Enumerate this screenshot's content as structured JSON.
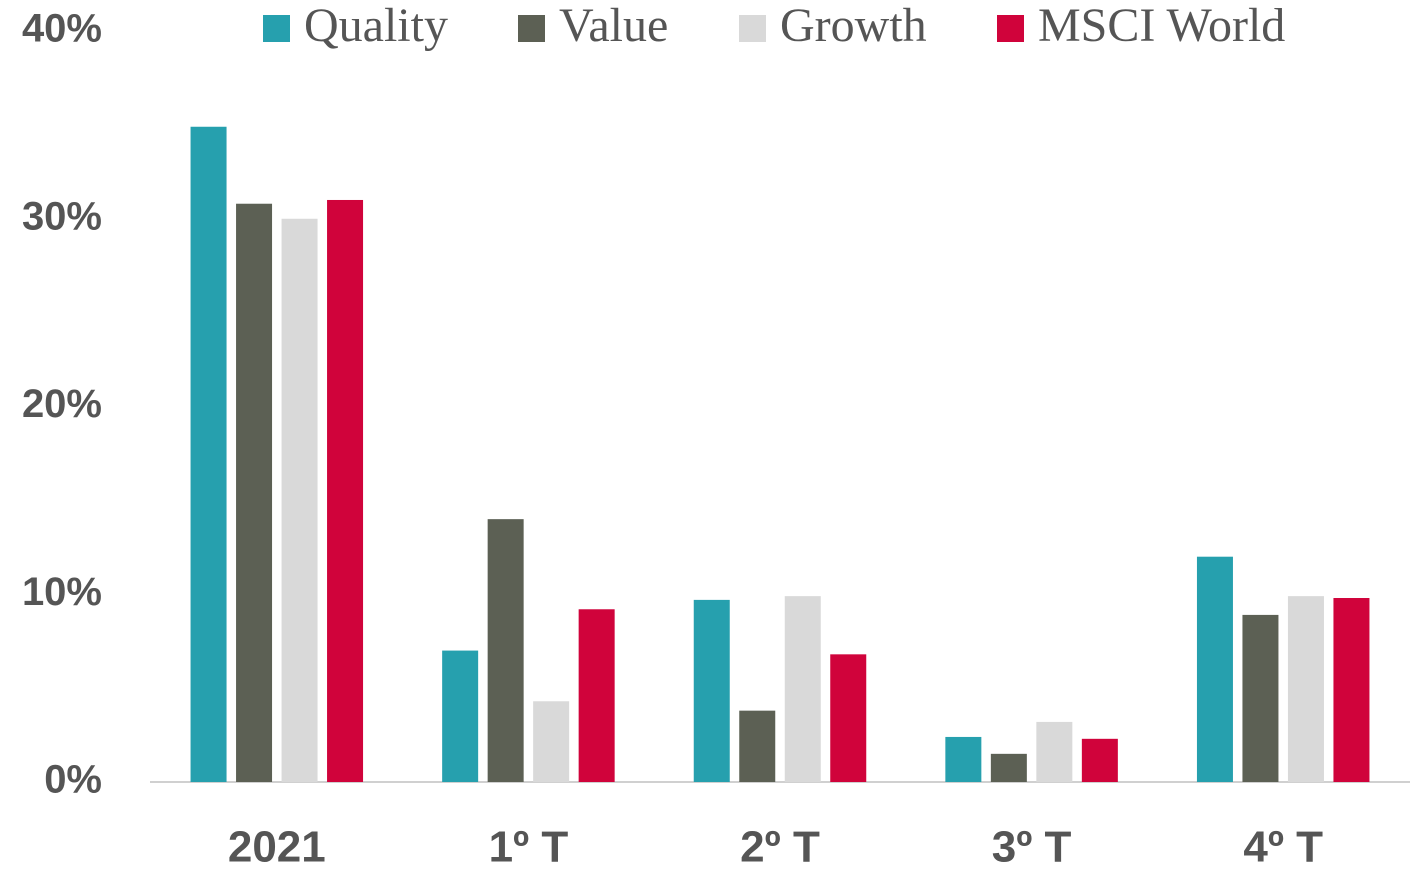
{
  "chart_data": {
    "type": "bar",
    "categories": [
      "2021",
      "1º T",
      "2º T",
      "3º T",
      "4º T"
    ],
    "series": [
      {
        "name": "Quality",
        "color": "#26a0ae",
        "values": [
          34.9,
          7.0,
          9.7,
          2.4,
          12.0
        ]
      },
      {
        "name": "Value",
        "color": "#5c6054",
        "values": [
          30.8,
          14.0,
          3.8,
          1.5,
          8.9
        ]
      },
      {
        "name": "Growth",
        "color": "#d9d9d9",
        "values": [
          30.0,
          4.3,
          9.9,
          3.2,
          9.9
        ]
      },
      {
        "name": "MSCI World",
        "color": "#d0033b",
        "values": [
          31.0,
          9.2,
          6.8,
          2.3,
          9.8
        ]
      }
    ],
    "ylim": [
      0,
      40
    ],
    "yticks": [
      {
        "value": 0,
        "label": "0%"
      },
      {
        "value": 10,
        "label": "10%"
      },
      {
        "value": 20,
        "label": "20%"
      },
      {
        "value": 30,
        "label": "30%"
      },
      {
        "value": 40,
        "label": "40%"
      }
    ],
    "grid": false,
    "legend": "top"
  }
}
